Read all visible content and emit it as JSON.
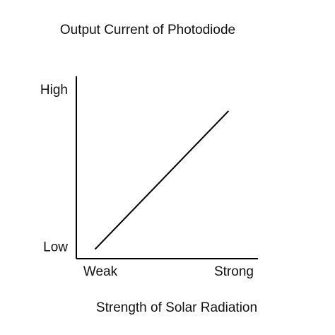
{
  "chart_data": {
    "type": "line",
    "title": "Output Current of Photodiode",
    "x_label": "Strength of Solar Radiation",
    "x": [
      -0.04,
      0.96
    ],
    "values": [
      -0.01,
      0.87
    ],
    "color": "#000000",
    "xlim": [
      -0.18,
      1.18
    ],
    "ylim": [
      -0.07,
      1.09
    ],
    "xticks": [
      {
        "value": 0,
        "label": "Weak"
      },
      {
        "value": 1,
        "label": "Strong"
      }
    ],
    "yticks": [
      {
        "value": 0,
        "label": "Low"
      },
      {
        "value": 1,
        "label": "High"
      }
    ],
    "grid": false
  }
}
